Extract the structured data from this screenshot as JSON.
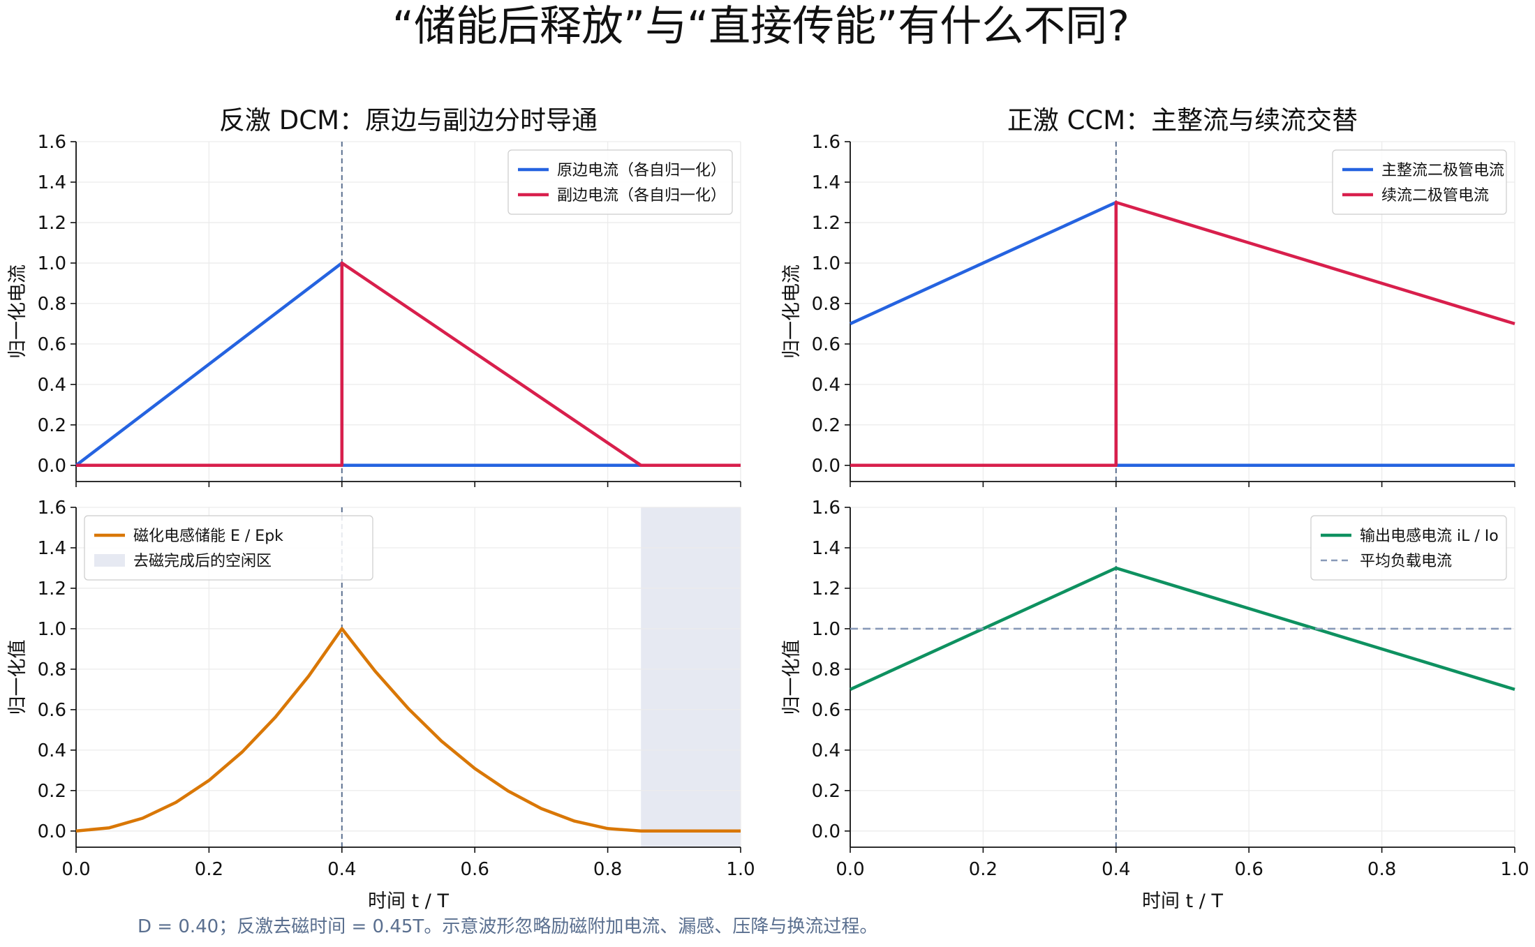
{
  "suptitle": "“储能后释放”与“直接传能”有什么不同?",
  "footnote": "D = 0.40；反激去磁时间 = 0.45T。示意波形忽略励磁附加电流、漏感、压降与换流过程。",
  "colors": {
    "blue": "#2563e0",
    "red": "#d81f4c",
    "orange": "#d97706",
    "green": "#0e9160",
    "dash_avg": "#8899b8",
    "vline": "#5a6f8f",
    "shade": "#e6e9f2",
    "grid": "#ececec"
  },
  "chart_data": [
    {
      "type": "line",
      "title": "反激 DCM：原边与副边分时导通",
      "xlabel": "",
      "ylabel": "归一化电流",
      "xlim": [
        0,
        1
      ],
      "ylim": [
        -0.08,
        1.6
      ],
      "x_ticks": [
        "0.0",
        "0.2",
        "0.4",
        "0.6",
        "0.8",
        "1.0"
      ],
      "y_ticks": [
        "0.0",
        "0.2",
        "0.4",
        "0.6",
        "0.8",
        "1.0",
        "1.2",
        "1.4",
        "1.6"
      ],
      "show_x_ticklabels": false,
      "grid": true,
      "vline": 0.4,
      "legend_position": "upper right",
      "series": [
        {
          "name": "原边电流（各自归一化）",
          "color_key": "blue",
          "x": [
            0,
            0.4,
            0.4,
            1.0
          ],
          "y": [
            0,
            1.0,
            0,
            0
          ]
        },
        {
          "name": "副边电流（各自归一化）",
          "color_key": "red",
          "x": [
            0,
            0.4,
            0.4,
            0.85,
            1.0
          ],
          "y": [
            0,
            0,
            1.0,
            0,
            0
          ]
        }
      ]
    },
    {
      "type": "line",
      "title": "正激 CCM：主整流与续流交替",
      "xlabel": "",
      "ylabel": "归一化电流",
      "xlim": [
        0,
        1
      ],
      "ylim": [
        -0.08,
        1.6
      ],
      "x_ticks": [
        "0.0",
        "0.2",
        "0.4",
        "0.6",
        "0.8",
        "1.0"
      ],
      "y_ticks": [
        "0.0",
        "0.2",
        "0.4",
        "0.6",
        "0.8",
        "1.0",
        "1.2",
        "1.4",
        "1.6"
      ],
      "show_x_ticklabels": false,
      "grid": true,
      "vline": 0.4,
      "legend_position": "upper right",
      "series": [
        {
          "name": "主整流二极管电流",
          "color_key": "blue",
          "x": [
            0,
            0.4,
            0.4,
            1.0
          ],
          "y": [
            0.7,
            1.3,
            0,
            0
          ]
        },
        {
          "name": "续流二极管电流",
          "color_key": "red",
          "x": [
            0,
            0.4,
            0.4,
            1.0
          ],
          "y": [
            0,
            0,
            1.3,
            0.7
          ]
        }
      ]
    },
    {
      "type": "line",
      "title": "",
      "xlabel": "时间 t / T",
      "ylabel": "归一化值",
      "xlim": [
        0,
        1
      ],
      "ylim": [
        -0.08,
        1.6
      ],
      "x_ticks": [
        "0.0",
        "0.2",
        "0.4",
        "0.6",
        "0.8",
        "1.0"
      ],
      "y_ticks": [
        "0.0",
        "0.2",
        "0.4",
        "0.6",
        "0.8",
        "1.0",
        "1.2",
        "1.4",
        "1.6"
      ],
      "show_x_ticklabels": true,
      "grid": true,
      "vline": 0.4,
      "shade": {
        "name": "去磁完成后的空闲区",
        "color_key": "shade",
        "x0": 0.85,
        "x1": 1.0
      },
      "legend_position": "upper left",
      "series": [
        {
          "name": "磁化电感储能 E / Epk",
          "color_key": "orange",
          "x": [
            0,
            0.05,
            0.1,
            0.15,
            0.2,
            0.25,
            0.3,
            0.35,
            0.4,
            0.45,
            0.5,
            0.55,
            0.6,
            0.65,
            0.7,
            0.75,
            0.8,
            0.85,
            1.0
          ],
          "y": [
            0,
            0.016,
            0.063,
            0.141,
            0.25,
            0.391,
            0.563,
            0.766,
            1.0,
            0.79,
            0.605,
            0.444,
            0.309,
            0.198,
            0.111,
            0.049,
            0.012,
            0,
            0
          ]
        }
      ]
    },
    {
      "type": "line",
      "title": "",
      "xlabel": "时间 t / T",
      "ylabel": "归一化值",
      "xlim": [
        0,
        1
      ],
      "ylim": [
        -0.08,
        1.6
      ],
      "x_ticks": [
        "0.0",
        "0.2",
        "0.4",
        "0.6",
        "0.8",
        "1.0"
      ],
      "y_ticks": [
        "0.0",
        "0.2",
        "0.4",
        "0.6",
        "0.8",
        "1.0",
        "1.2",
        "1.4",
        "1.6"
      ],
      "show_x_ticklabels": true,
      "grid": true,
      "vline": 0.4,
      "legend_position": "upper right",
      "series": [
        {
          "name": "输出电感电流 iL / Io",
          "color_key": "green",
          "x": [
            0,
            0.4,
            1.0
          ],
          "y": [
            0.7,
            1.3,
            0.7
          ]
        },
        {
          "name": "平均负载电流",
          "color_key": "dash_avg",
          "dashed": true,
          "x": [
            0,
            1.0
          ],
          "y": [
            1.0,
            1.0
          ]
        }
      ]
    }
  ]
}
